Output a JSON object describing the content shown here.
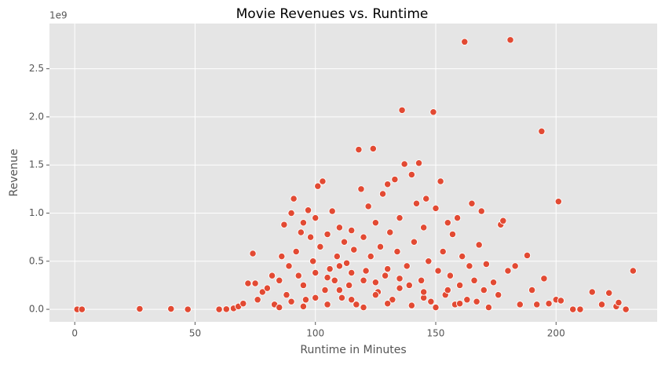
{
  "chart_data": {
    "type": "scatter",
    "title": "Movie Revenues vs. Runtime",
    "x_label": "Runtime in Minutes",
    "y_label": "Revenue",
    "y_offset_label": "1e9",
    "color": "#e24a33",
    "grid": true,
    "xlim": [
      -10.5,
      242
    ],
    "ylim": [
      -0.13,
      2.97
    ],
    "xticks": [
      0,
      50,
      100,
      150,
      200
    ],
    "yticks": [
      {
        "value": 0,
        "label": "0.0"
      },
      0.5,
      {
        "value": 1,
        "label": "1.0"
      },
      1.5,
      {
        "value": 2,
        "label": "2.0"
      },
      2.5
    ],
    "x": [
      1,
      3,
      27,
      40,
      47,
      60,
      63,
      66,
      68,
      70,
      72,
      75,
      74,
      76,
      78,
      80,
      82,
      83,
      85,
      86,
      87,
      88,
      89,
      90,
      91,
      92,
      93,
      94,
      95,
      96,
      97,
      98,
      99,
      100,
      101,
      102,
      103,
      104,
      105,
      106,
      107,
      108,
      109,
      110,
      111,
      112,
      113,
      114,
      115,
      116,
      117,
      118,
      119,
      120,
      121,
      122,
      123,
      124,
      125,
      126,
      127,
      128,
      129,
      130,
      131,
      132,
      133,
      134,
      135,
      136,
      137,
      138,
      139,
      140,
      141,
      142,
      143,
      144,
      145,
      146,
      147,
      148,
      149,
      150,
      151,
      152,
      153,
      154,
      155,
      156,
      157,
      158,
      159,
      160,
      161,
      162,
      163,
      164,
      165,
      166,
      167,
      168,
      169,
      170,
      171,
      172,
      174,
      176,
      177,
      178,
      180,
      181,
      183,
      185,
      188,
      190,
      192,
      194,
      195,
      197,
      200,
      201,
      202,
      207,
      210,
      215,
      219,
      222,
      225,
      226,
      229,
      232,
      85,
      90,
      95,
      100,
      105,
      110,
      115,
      120,
      125,
      130,
      135,
      140,
      145,
      150,
      155,
      160,
      95,
      105,
      115,
      125,
      135,
      145,
      100,
      110,
      120,
      130
    ],
    "values": [
      0,
      0,
      0.005,
      0.005,
      0,
      0,
      0.002,
      0.01,
      0.03,
      0.06,
      0.27,
      0.27,
      0.58,
      0.1,
      0.18,
      0.22,
      0.35,
      0.05,
      0.3,
      0.55,
      0.88,
      0.15,
      0.45,
      1.0,
      1.15,
      0.6,
      0.35,
      0.8,
      0.9,
      0.1,
      1.03,
      0.75,
      0.5,
      0.95,
      1.28,
      0.65,
      1.33,
      0.2,
      0.78,
      0.42,
      1.02,
      0.3,
      0.55,
      0.85,
      0.12,
      0.7,
      0.48,
      0.25,
      0.82,
      0.62,
      0.05,
      1.66,
      1.25,
      0.75,
      0.4,
      1.07,
      0.55,
      1.67,
      0.9,
      0.18,
      0.65,
      1.2,
      0.35,
      1.3,
      0.8,
      0.1,
      1.35,
      0.6,
      0.95,
      2.07,
      1.51,
      0.45,
      0.25,
      1.4,
      0.7,
      1.1,
      1.52,
      0.3,
      0.85,
      1.15,
      0.5,
      0.08,
      2.05,
      1.05,
      0.4,
      1.33,
      0.6,
      0.15,
      0.9,
      0.35,
      0.78,
      0.05,
      0.95,
      0.25,
      0.55,
      2.78,
      0.1,
      0.45,
      1.1,
      0.3,
      0.08,
      0.67,
      1.02,
      0.2,
      0.47,
      0.02,
      0.28,
      0.15,
      0.88,
      0.92,
      0.4,
      2.8,
      0.45,
      0.05,
      0.56,
      0.2,
      0.05,
      1.85,
      0.32,
      0.06,
      0.1,
      1.12,
      0.09,
      0,
      0,
      0.18,
      0.05,
      0.17,
      0.03,
      0.07,
      0,
      0.4,
      0.02,
      0.08,
      0.03,
      0.12,
      0.05,
      0.2,
      0.1,
      0.02,
      0.15,
      0.06,
      0.22,
      0.04,
      0.12,
      0.02,
      0.2,
      0.06,
      0.25,
      0.33,
      0.38,
      0.28,
      0.32,
      0.18,
      0.38,
      0.45,
      0.3,
      0.42
    ]
  }
}
